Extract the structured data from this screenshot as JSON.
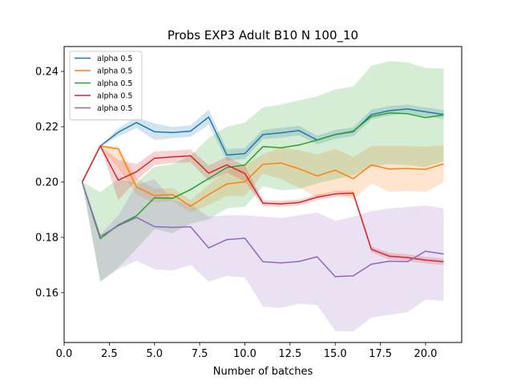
{
  "chart_data": {
    "type": "line",
    "title": "Probs EXP3 Adult B10 N 100_10",
    "xlabel": "Number of batches",
    "ylabel": "",
    "xlim": [
      0.0,
      22.0
    ],
    "ylim": [
      0.142,
      0.249
    ],
    "xticks": [
      0.0,
      2.5,
      5.0,
      7.5,
      10.0,
      12.5,
      15.0,
      17.5,
      20.0
    ],
    "xtick_labels": [
      "0.0",
      "2.5",
      "5.0",
      "7.5",
      "10.0",
      "12.5",
      "15.0",
      "17.5",
      "20.0"
    ],
    "yticks": [
      0.16,
      0.18,
      0.2,
      0.22,
      0.24
    ],
    "ytick_labels": [
      "0.16",
      "0.18",
      "0.20",
      "0.22",
      "0.24"
    ],
    "grid": false,
    "legend_position": "top-left",
    "x": [
      1,
      2,
      3,
      4,
      5,
      6,
      7,
      8,
      9,
      10,
      11,
      12,
      13,
      14,
      15,
      16,
      17,
      18,
      19,
      20,
      21
    ],
    "series": [
      {
        "name": "alpha 0.5",
        "color": "#1f77b4",
        "values": [
          0.2,
          0.213,
          0.218,
          0.2215,
          0.2182,
          0.2179,
          0.2184,
          0.2235,
          0.2098,
          0.2103,
          0.2172,
          0.2178,
          0.2186,
          0.2152,
          0.2172,
          0.2182,
          0.2244,
          0.2258,
          0.2264,
          0.2254,
          0.2244
        ],
        "upper": [
          0.2,
          0.213,
          0.2195,
          0.2235,
          0.2212,
          0.2199,
          0.2205,
          0.2262,
          0.2118,
          0.2123,
          0.2189,
          0.2196,
          0.2203,
          0.2168,
          0.2188,
          0.2198,
          0.2262,
          0.2275,
          0.228,
          0.227,
          0.226
        ],
        "lower": [
          0.2,
          0.213,
          0.2165,
          0.2195,
          0.2152,
          0.2159,
          0.2163,
          0.2208,
          0.2078,
          0.2083,
          0.2155,
          0.216,
          0.2169,
          0.2136,
          0.2156,
          0.2166,
          0.2226,
          0.2241,
          0.2248,
          0.2238,
          0.2228
        ]
      },
      {
        "name": "alpha 0.5",
        "color": "#ff7f0e",
        "values": [
          0.2,
          0.213,
          0.212,
          0.1982,
          0.1951,
          0.1955,
          0.1913,
          0.1955,
          0.1993,
          0.2001,
          0.2064,
          0.2069,
          0.2048,
          0.2022,
          0.2043,
          0.2012,
          0.2062,
          0.2047,
          0.2049,
          0.2046,
          0.2066
        ],
        "upper": [
          0.2,
          0.213,
          0.213,
          0.2015,
          0.1975,
          0.1978,
          0.1935,
          0.199,
          0.204,
          0.206,
          0.21,
          0.2125,
          0.2115,
          0.21,
          0.212,
          0.209,
          0.213,
          0.213,
          0.213,
          0.2128,
          0.2133
        ],
        "lower": [
          0.2,
          0.213,
          0.205,
          0.1955,
          0.1925,
          0.1932,
          0.189,
          0.1918,
          0.195,
          0.195,
          0.203,
          0.201,
          0.198,
          0.1945,
          0.1966,
          0.1935,
          0.1995,
          0.1965,
          0.1968,
          0.1964,
          0.1999
        ]
      },
      {
        "name": "alpha 0.5",
        "color": "#2ca02c",
        "values": [
          0.2,
          0.1795,
          0.1845,
          0.1878,
          0.1943,
          0.1941,
          0.1973,
          0.2013,
          0.2052,
          0.2062,
          0.2128,
          0.2124,
          0.2134,
          0.2152,
          0.2172,
          0.2184,
          0.2237,
          0.225,
          0.2247,
          0.2233,
          0.2243
        ],
        "upper": [
          0.2,
          0.1965,
          0.201,
          0.1998,
          0.2055,
          0.2065,
          0.2095,
          0.216,
          0.22,
          0.2215,
          0.227,
          0.228,
          0.2295,
          0.231,
          0.2335,
          0.2345,
          0.242,
          0.2437,
          0.2432,
          0.2413,
          0.241
        ],
        "lower": [
          0.2,
          0.164,
          0.169,
          0.1758,
          0.183,
          0.1815,
          0.185,
          0.1865,
          0.1905,
          0.191,
          0.1985,
          0.197,
          0.1975,
          0.1995,
          0.201,
          0.2025,
          0.2055,
          0.2065,
          0.206,
          0.2055,
          0.2075
        ]
      },
      {
        "name": "alpha 0.5",
        "color": "#d62728",
        "values": [
          0.2,
          0.213,
          0.2007,
          0.2037,
          0.2086,
          0.2091,
          0.2095,
          0.2032,
          0.2062,
          0.2031,
          0.1924,
          0.1921,
          0.1926,
          0.1945,
          0.1957,
          0.196,
          0.1757,
          0.1732,
          0.1727,
          0.1718,
          0.1712
        ],
        "upper": [
          0.2,
          0.213,
          0.208,
          0.2065,
          0.2111,
          0.2113,
          0.2118,
          0.206,
          0.209,
          0.206,
          0.1935,
          0.1932,
          0.1937,
          0.1955,
          0.1968,
          0.197,
          0.1768,
          0.1744,
          0.1739,
          0.173,
          0.1724
        ],
        "lower": [
          0.2,
          0.213,
          0.1935,
          0.2005,
          0.2061,
          0.2069,
          0.2072,
          0.2004,
          0.2034,
          0.2002,
          0.1913,
          0.191,
          0.1915,
          0.1935,
          0.1946,
          0.195,
          0.1746,
          0.172,
          0.1715,
          0.1706,
          0.17
        ]
      },
      {
        "name": "alpha 0.5",
        "color": "#9467bd",
        "values": [
          0.2,
          0.1803,
          0.1842,
          0.1872,
          0.1839,
          0.1836,
          0.1838,
          0.1762,
          0.1792,
          0.1797,
          0.1712,
          0.1708,
          0.1713,
          0.173,
          0.1658,
          0.1661,
          0.1703,
          0.1714,
          0.1712,
          0.175,
          0.174
        ],
        "upper": [
          0.2,
          0.181,
          0.188,
          0.199,
          0.201,
          0.1935,
          0.192,
          0.1875,
          0.188,
          0.188,
          0.1875,
          0.187,
          0.188,
          0.189,
          0.186,
          0.1875,
          0.1895,
          0.1905,
          0.191,
          0.1915,
          0.1905
        ],
        "lower": [
          0.2,
          0.164,
          0.1685,
          0.1715,
          0.1685,
          0.168,
          0.17,
          0.164,
          0.166,
          0.1655,
          0.155,
          0.1545,
          0.156,
          0.1555,
          0.1462,
          0.146,
          0.151,
          0.152,
          0.153,
          0.1575,
          0.157
        ]
      }
    ]
  }
}
